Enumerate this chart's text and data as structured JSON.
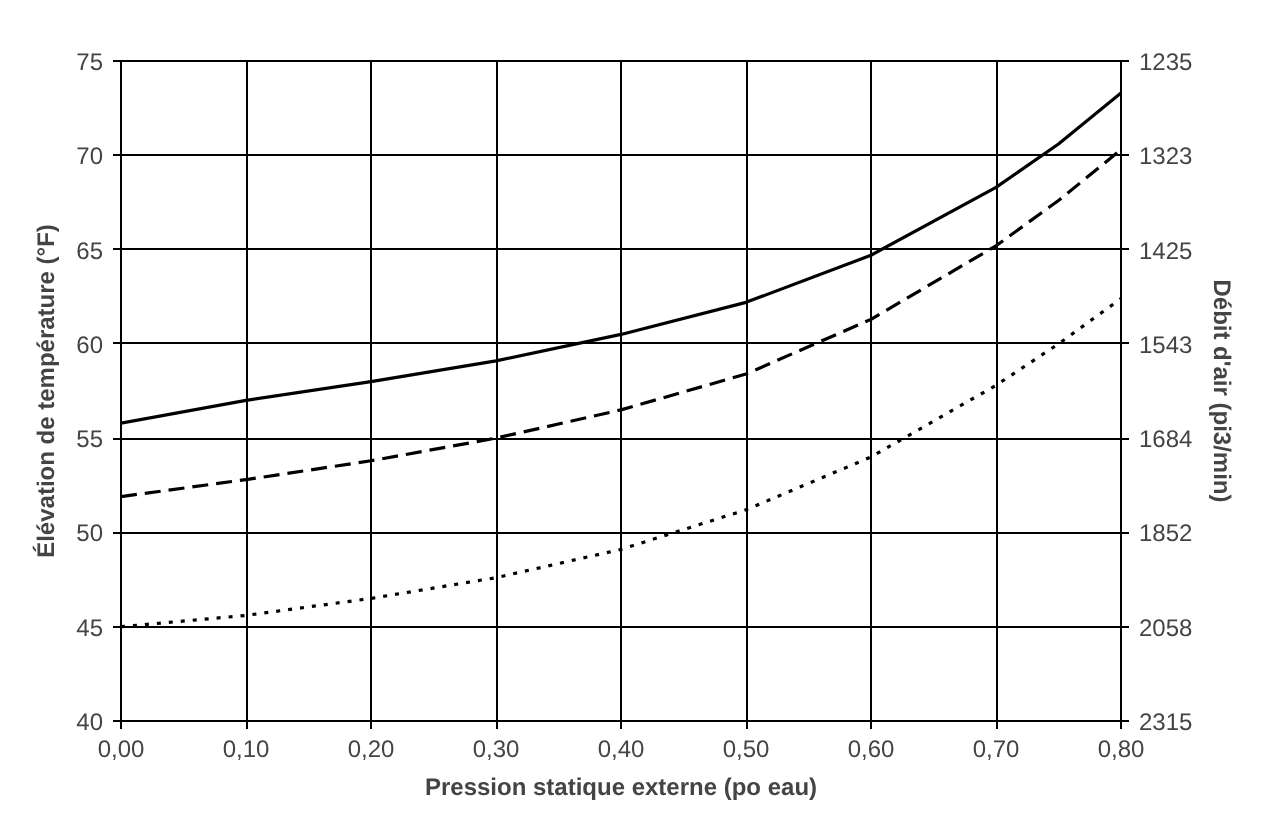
{
  "chart_data": {
    "type": "line",
    "xlabel": "Pression statique externe (po eau)",
    "ylabel": "Élévation de température (°F)",
    "y2label": "Débit d'air (pi3/min)",
    "x": [
      0,
      0.1,
      0.2,
      0.3,
      0.4,
      0.5,
      0.6,
      0.7,
      0.75,
      0.8
    ],
    "series": [
      {
        "color": "#000000",
        "line_style": "solid",
        "values": [
          55.8,
          57.0,
          58.0,
          59.1,
          60.5,
          62.2,
          64.7,
          68.3,
          70.6,
          73.3
        ]
      },
      {
        "color": "#000000",
        "line_style": "dashed",
        "values": [
          51.9,
          52.8,
          53.8,
          55.0,
          56.5,
          58.4,
          61.3,
          65.2,
          67.6,
          70.3
        ]
      },
      {
        "color": "#000000",
        "line_style": "dotted",
        "values": [
          45.0,
          45.6,
          46.5,
          47.6,
          49.1,
          51.2,
          54.0,
          57.8,
          60.0,
          62.4
        ]
      }
    ],
    "xlim": [
      0,
      0.8
    ],
    "ylim": [
      40,
      75
    ],
    "xticks": [
      {
        "value": 0,
        "label": "0,00"
      },
      {
        "value": 0.1,
        "label": "0,10"
      },
      {
        "value": 0.2,
        "label": "0,20"
      },
      {
        "value": 0.3,
        "label": "0,30"
      },
      {
        "value": 0.4,
        "label": "0,40"
      },
      {
        "value": 0.5,
        "label": "0,50"
      },
      {
        "value": 0.6,
        "label": "0,60"
      },
      {
        "value": 0.7,
        "label": "0,70"
      },
      {
        "value": 0.8,
        "label": "0,80"
      }
    ],
    "yticks": [
      40,
      45,
      50,
      55,
      60,
      65,
      70,
      75
    ],
    "y2_categories": [
      "1235",
      "1323",
      "1425",
      "1543",
      "1684",
      "1852",
      "2058",
      "2315"
    ],
    "grid": true,
    "marker": "none"
  }
}
